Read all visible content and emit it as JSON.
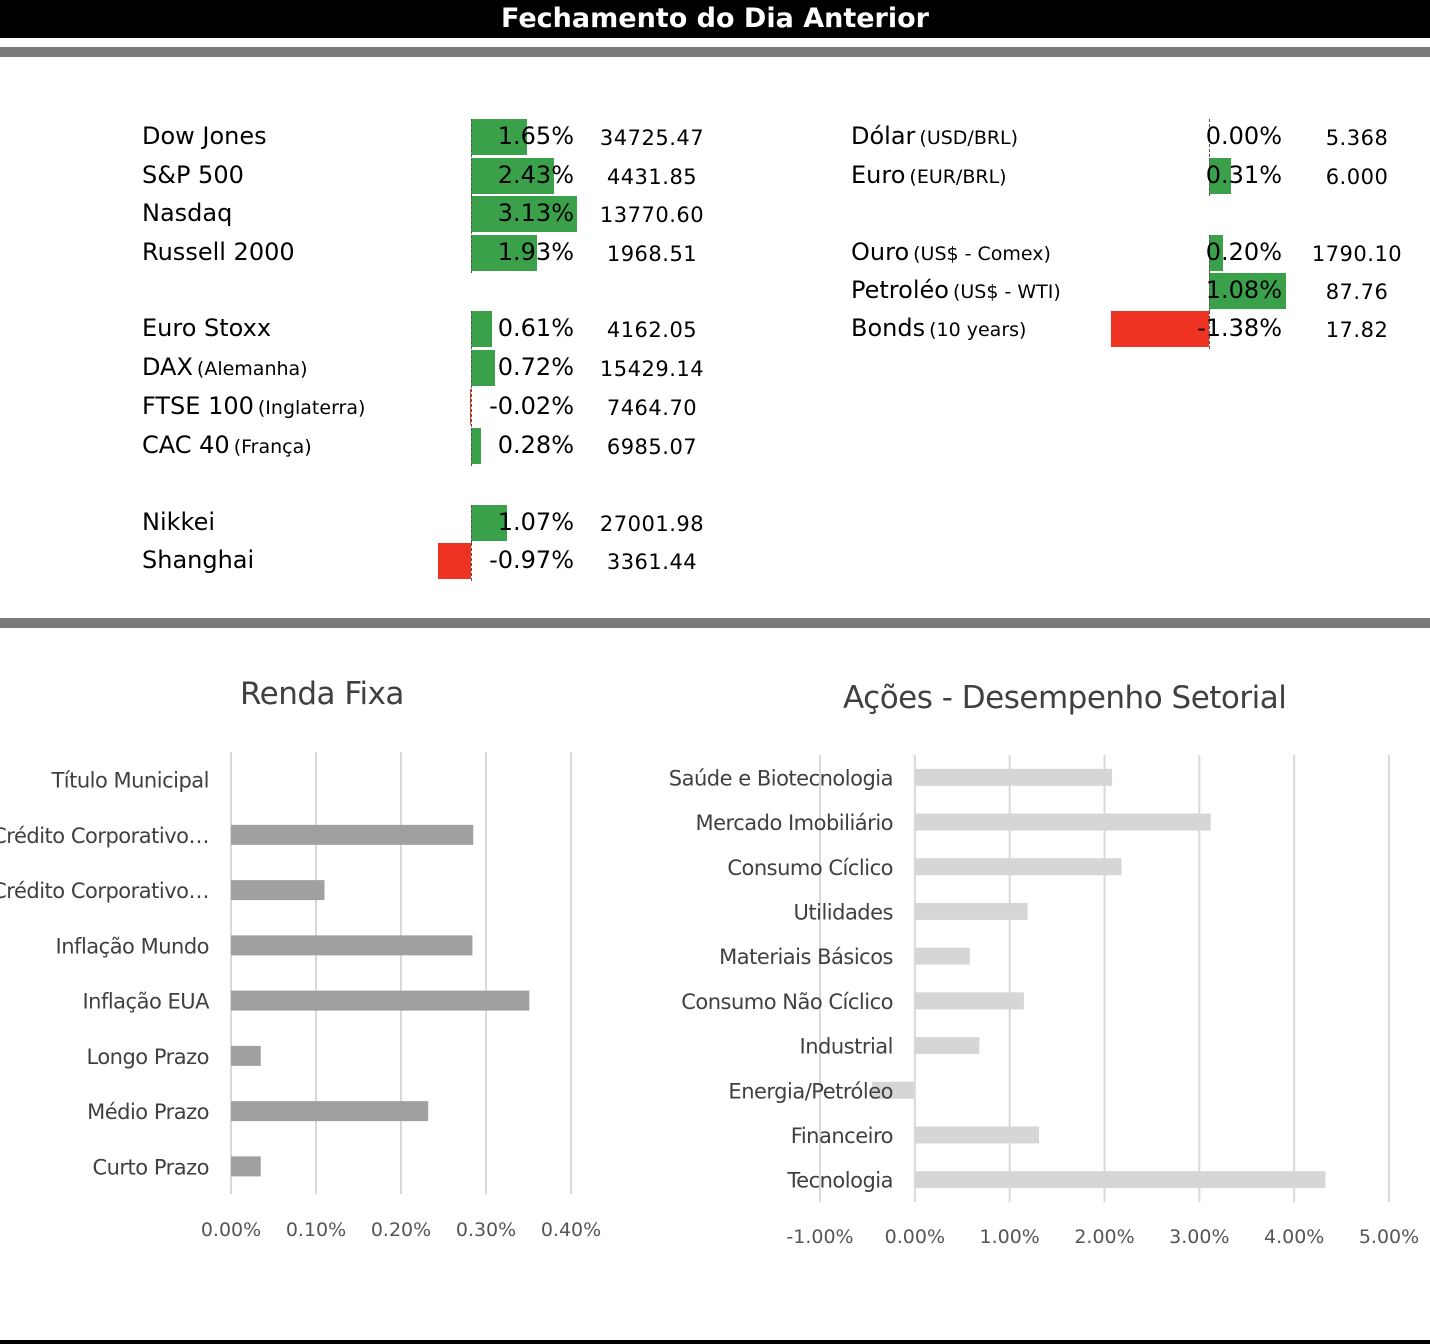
{
  "header": {
    "title": "Fechamento do Dia Anterior"
  },
  "colors": {
    "positive": "#3aa14a",
    "negative": "#ee3322",
    "renda_bar": "#a0a0a0",
    "setorial_bar": "#d6d6d6",
    "grid": "#d9d9d9",
    "separator": "#7a7a7a"
  },
  "markets_left": [
    {
      "name": "Dow Jones",
      "sub": "",
      "pct": "1.65%",
      "change": 1.65,
      "value": "34725.47"
    },
    {
      "name": "S&P 500",
      "sub": "",
      "pct": "2.43%",
      "change": 2.43,
      "value": "4431.85"
    },
    {
      "name": "Nasdaq",
      "sub": "",
      "pct": "3.13%",
      "change": 3.13,
      "value": "13770.60"
    },
    {
      "name": "Russell 2000",
      "sub": "",
      "pct": "1.93%",
      "change": 1.93,
      "value": "1968.51"
    },
    {
      "name": "Euro Stoxx",
      "sub": "",
      "pct": "0.61%",
      "change": 0.61,
      "value": "4162.05"
    },
    {
      "name": "DAX",
      "sub": "(Alemanha)",
      "pct": "0.72%",
      "change": 0.72,
      "value": "15429.14"
    },
    {
      "name": "FTSE 100",
      "sub": "(Inglaterra)",
      "pct": "-0.02%",
      "change": -0.02,
      "value": "7464.70"
    },
    {
      "name": "CAC 40",
      "sub": "(França)",
      "pct": "0.28%",
      "change": 0.28,
      "value": "6985.07"
    },
    {
      "name": "Nikkei",
      "sub": "",
      "pct": "1.07%",
      "change": 1.07,
      "value": "27001.98"
    },
    {
      "name": "Shanghai",
      "sub": "",
      "pct": "-0.97%",
      "change": -0.97,
      "value": "3361.44"
    }
  ],
  "markets_right": [
    {
      "name": "Dólar",
      "sub": "(USD/BRL)",
      "pct": "0.00%",
      "change": 0.0,
      "value": "5.368"
    },
    {
      "name": "Euro",
      "sub": "(EUR/BRL)",
      "pct": "0.31%",
      "change": 0.31,
      "value": "6.000"
    },
    {
      "name": "Ouro",
      "sub": "(US$ - Comex)",
      "pct": "0.20%",
      "change": 0.2,
      "value": "1790.10"
    },
    {
      "name": "Petroléo",
      "sub": "(US$ - WTI)",
      "pct": "1.08%",
      "change": 1.08,
      "value": "87.76"
    },
    {
      "name": "Bonds",
      "sub": "(10 years)",
      "pct": "-1.38%",
      "change": -1.38,
      "value": "17.82"
    }
  ],
  "chart_data": [
    {
      "type": "bar",
      "orientation": "horizontal",
      "title": "Renda Fixa",
      "categories": [
        "Título Municipal",
        "Crédito Corporativo…",
        "Crédito Corporativo…",
        "Inflação Mundo",
        "Inflação EUA",
        "Longo Prazo",
        "Médio Prazo",
        "Curto Prazo"
      ],
      "values": [
        0.0,
        0.285,
        0.11,
        0.284,
        0.351,
        0.035,
        0.232,
        0.035
      ],
      "unit": "%",
      "xlim": [
        0,
        0.4
      ],
      "ticks": [
        0,
        0.1,
        0.2,
        0.3,
        0.4
      ],
      "tick_labels": [
        "0.00%",
        "0.10%",
        "0.20%",
        "0.30%",
        "0.40%"
      ],
      "grid": true,
      "legend": "none"
    },
    {
      "type": "bar",
      "orientation": "horizontal",
      "title": "Ações - Desempenho Setorial",
      "categories": [
        "Saúde e Biotecnologia",
        "Mercado Imobiliário",
        "Consumo Cíclico",
        "Utilidades",
        "Materiais Básicos",
        "Consumo Não Cíclico",
        "Industrial",
        "Energia/Petróleo",
        "Financeiro",
        "Tecnologia"
      ],
      "values": [
        2.08,
        3.12,
        2.18,
        1.19,
        0.58,
        1.15,
        0.68,
        -0.45,
        1.31,
        4.33
      ],
      "unit": "%",
      "xlim": [
        -1,
        5
      ],
      "ticks": [
        -1,
        0,
        1,
        2,
        3,
        4,
        5
      ],
      "tick_labels": [
        "-1.00%",
        "0.00%",
        "1.00%",
        "2.00%",
        "3.00%",
        "4.00%",
        "5.00%"
      ],
      "grid": true,
      "legend": "none"
    }
  ]
}
